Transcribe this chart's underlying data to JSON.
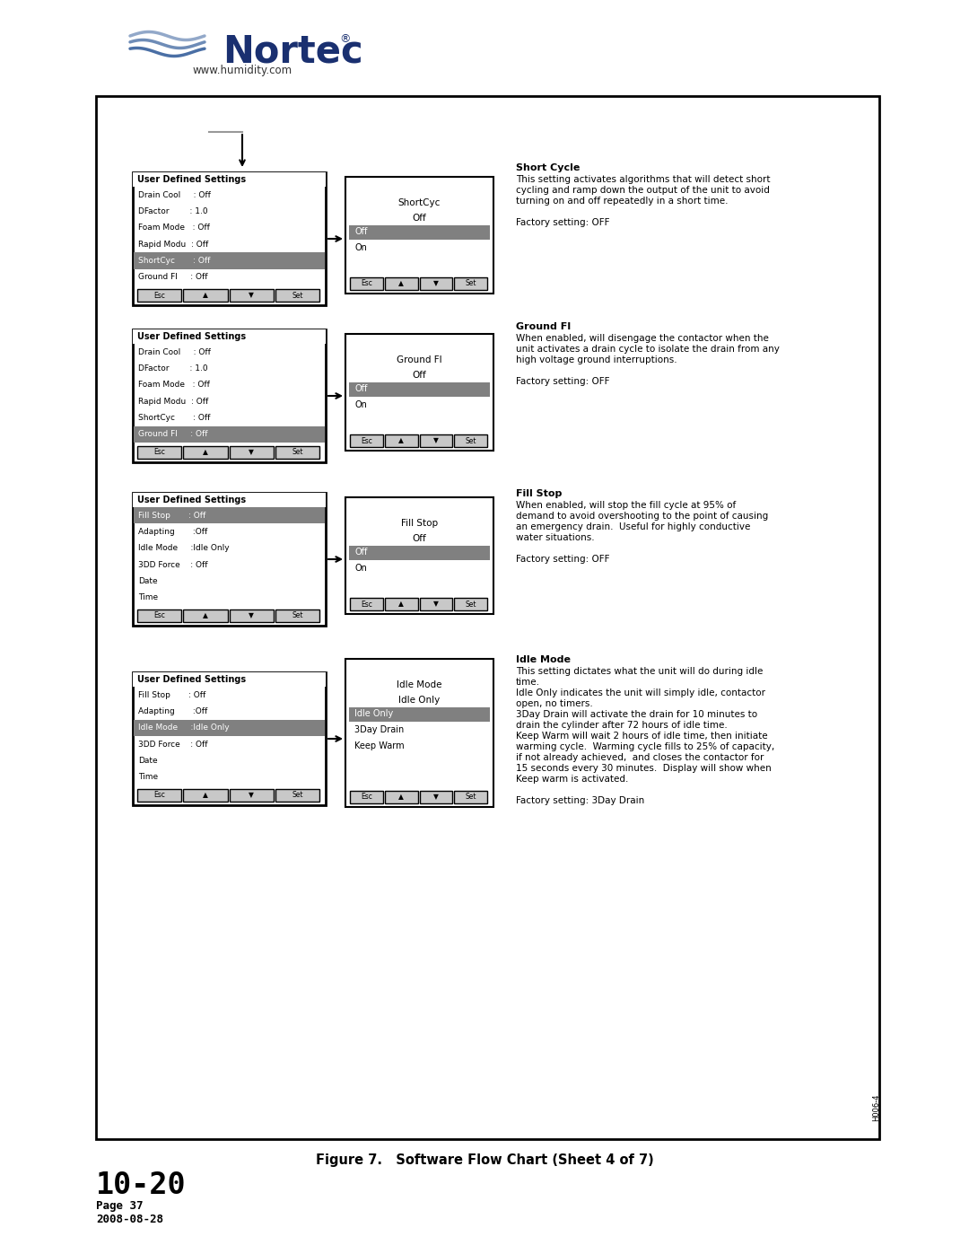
{
  "page_title_large": "10-20",
  "page_title_small1": "Page 37",
  "page_title_small2": "2008-08-28",
  "figure_caption": "Figure 7.   Software Flow Chart (Sheet 4 of 7)",
  "figure_id": "H006-4",
  "nortec_url": "www.humidity.com",
  "section1": {
    "menu_title": "User Defined Settings",
    "menu_items": [
      "Drain Cool     : Off",
      "DFactor        : 1.0",
      "Foam Mode   : Off",
      "Rapid Modu  : Off",
      "ShortCyc       : Off",
      "Ground FI     : Off"
    ],
    "highlighted_index": 4,
    "sub_title": "ShortCyc",
    "sub_text": "Off",
    "sub_options": [
      "Off",
      "On"
    ],
    "sub_highlighted": 0,
    "description_title": "Short Cycle",
    "description_lines": [
      "This setting activates algorithms that will detect short",
      "cycling and ramp down the output of the unit to avoid",
      "turning on and off repeatedly in a short time.",
      "",
      "Factory setting: OFF"
    ]
  },
  "section2": {
    "menu_title": "User Defined Settings",
    "menu_items": [
      "Drain Cool     : Off",
      "DFactor        : 1.0",
      "Foam Mode   : Off",
      "Rapid Modu  : Off",
      "ShortCyc       : Off",
      "Ground FI     : Off"
    ],
    "highlighted_index": 5,
    "sub_title": "Ground FI",
    "sub_text": "Off",
    "sub_options": [
      "Off",
      "On"
    ],
    "sub_highlighted": 0,
    "description_title": "Ground FI",
    "description_lines": [
      "When enabled, will disengage the contactor when the",
      "unit activates a drain cycle to isolate the drain from any",
      "high voltage ground interruptions.",
      "",
      "Factory setting: OFF"
    ]
  },
  "section3": {
    "menu_title": "User Defined Settings",
    "menu_items": [
      "Fill Stop       : Off",
      "Adapting       :Off",
      "Idle Mode     :Idle Only",
      "3DD Force    : Off",
      "Date",
      "Time"
    ],
    "highlighted_index": 0,
    "sub_title": "Fill Stop",
    "sub_text": "Off",
    "sub_options": [
      "Off",
      "On"
    ],
    "sub_highlighted": 0,
    "description_title": "Fill Stop",
    "description_lines": [
      "When enabled, will stop the fill cycle at 95% of",
      "demand to avoid overshooting to the point of causing",
      "an emergency drain.  Useful for highly conductive",
      "water situations.",
      "",
      "Factory setting: OFF"
    ]
  },
  "section4": {
    "menu_title": "User Defined Settings",
    "menu_items": [
      "Fill Stop       : Off",
      "Adapting       :Off",
      "Idle Mode     :Idle Only",
      "3DD Force    : Off",
      "Date",
      "Time"
    ],
    "highlighted_index": 2,
    "sub_title": "Idle Mode",
    "sub_text": "Idle Only",
    "sub_options": [
      "Idle Only",
      "3Day Drain",
      "Keep Warm"
    ],
    "sub_highlighted": 0,
    "description_title": "Idle Mode",
    "description_lines": [
      "This setting dictates what the unit will do during idle",
      "time.",
      "Idle Only indicates the unit will simply idle, contactor",
      "open, no timers.",
      "3Day Drain will activate the drain for 10 minutes to",
      "drain the cylinder after 72 hours of idle time.",
      "Keep Warm will wait 2 hours of idle time, then initiate",
      "warming cycle.  Warming cycle fills to 25% of capacity,",
      "if not already achieved,  and closes the contactor for",
      "15 seconds every 30 minutes.  Display will show when",
      "Keep warm is activated.",
      "",
      "Factory setting: 3Day Drain"
    ]
  },
  "highlight_color": "#808080",
  "box_bg": "#ffffff",
  "button_bg": "#c8c8c8",
  "arrow_color": "#000000"
}
